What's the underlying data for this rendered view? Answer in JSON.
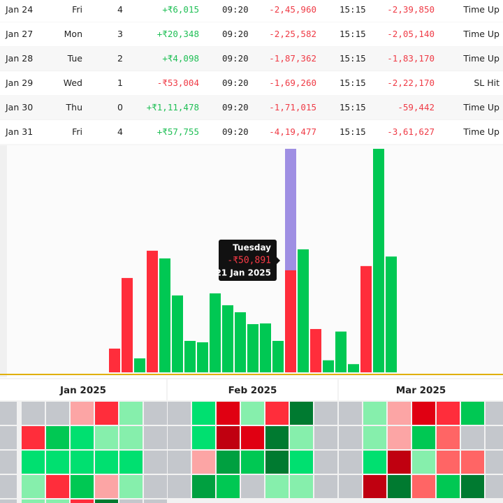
{
  "table": {
    "rows": [
      [
        "Jan 24",
        "Fri",
        "4",
        "+₹6,015",
        "09:20",
        "-2,45,960",
        "15:15",
        "-2,39,850",
        "Time Up"
      ],
      [
        "Jan 27",
        "Mon",
        "3",
        "+₹20,348",
        "09:20",
        "-2,25,582",
        "15:15",
        "-2,05,140",
        "Time Up"
      ],
      [
        "Jan 28",
        "Tue",
        "2",
        "+₹4,098",
        "09:20",
        "-1,87,362",
        "15:15",
        "-1,83,170",
        "Time Up"
      ],
      [
        "Jan 29",
        "Wed",
        "1",
        "-₹53,004",
        "09:20",
        "-1,69,260",
        "15:15",
        "-2,22,170",
        "SL Hit"
      ],
      [
        "Jan 30",
        "Thu",
        "0",
        "+₹1,11,478",
        "09:20",
        "-1,71,015",
        "15:15",
        "-59,442",
        "Time Up"
      ],
      [
        "Jan 31",
        "Fri",
        "4",
        "+₹57,755",
        "09:20",
        "-4,19,477",
        "15:15",
        "-3,61,627",
        "Time Up"
      ]
    ]
  },
  "chart_data": {
    "type": "bar",
    "values": [
      -11850,
      -47060,
      6970,
      -60660,
      56820,
      38350,
      15690,
      14990,
      39390,
      33470,
      29980,
      24050,
      24400,
      15690,
      -50891,
      61350,
      -21610,
      6015,
      20348,
      4098,
      -53004,
      111478,
      57755
    ],
    "pos_color": "#00c853",
    "neg_color": "#ff2d3b",
    "highlight_color": "#9f8fe3",
    "highlighted": 14,
    "tooltip": {
      "title": "Tuesday",
      "value": "-₹50,891",
      "date": "21 Jan 2025"
    }
  },
  "calendar": {
    "palette": {
      "n": "#c4c7cc",
      "a": "#fca5a5",
      "r": "#ff2d3b",
      "s": "#ff6565",
      "d": "#c00010",
      "e": "#e00012",
      "l": "#86efac",
      "g": "#00e070",
      "m": "#00c853",
      "k": "#00a040",
      "z": "#007a30",
      "w": "#f2f2f2"
    },
    "months": [
      {
        "title": "Jan 2025",
        "rows": [
          [
            "n",
            "n",
            "n",
            "a",
            "r",
            "l",
            "n"
          ],
          [
            "n",
            "r",
            "m",
            "g",
            "l",
            "l",
            "n"
          ],
          [
            "n",
            "g",
            "g",
            "g",
            "g",
            "g",
            "n"
          ],
          [
            "n",
            "l",
            "r",
            "m",
            "a",
            "l",
            "n"
          ],
          [
            "n",
            "l",
            "l",
            "r",
            "z",
            "n",
            "n"
          ]
        ]
      },
      {
        "title": "Feb 2025",
        "rows": [
          [
            "n",
            "g",
            "e",
            "l",
            "r",
            "z",
            "n"
          ],
          [
            "n",
            "g",
            "d",
            "e",
            "z",
            "l",
            "n"
          ],
          [
            "n",
            "a",
            "k",
            "m",
            "z",
            "g",
            "n"
          ],
          [
            "n",
            "k",
            "m",
            "n",
            "l",
            "l",
            "n"
          ],
          [
            "w",
            "w",
            "w",
            "w",
            "w",
            "w",
            "w"
          ]
        ]
      },
      {
        "title": "Mar 2025",
        "rows": [
          [
            "n",
            "l",
            "a",
            "e",
            "r",
            "m",
            "n"
          ],
          [
            "n",
            "l",
            "a",
            "m",
            "s",
            "n",
            "n"
          ],
          [
            "n",
            "g",
            "d",
            "l",
            "s",
            "s",
            "n"
          ],
          [
            "n",
            "d",
            "z",
            "s",
            "m",
            "z",
            "n"
          ],
          [
            "w",
            "w",
            "w",
            "w",
            "w",
            "w",
            "w"
          ]
        ]
      }
    ]
  }
}
